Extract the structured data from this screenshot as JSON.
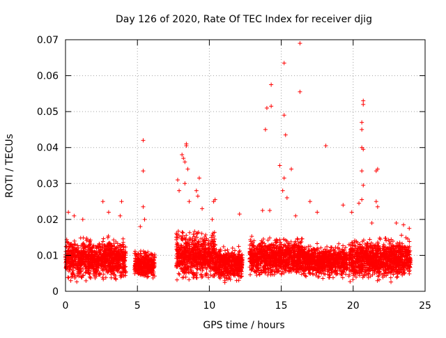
{
  "chart_data": {
    "type": "scatter",
    "title": "Day 126 of 2020, Rate Of TEC Index for receiver djig",
    "xlabel": "GPS time / hours",
    "ylabel": "ROTI / TECUs",
    "xlim": [
      0,
      25
    ],
    "ylim": [
      0,
      0.07
    ],
    "xticks": [
      0,
      5,
      10,
      15,
      20,
      25
    ],
    "yticks": [
      0,
      0.01,
      0.02,
      0.03,
      0.04,
      0.05,
      0.06,
      0.07
    ],
    "xtick_labels": [
      "0",
      "5",
      "10",
      "15",
      "20",
      "25"
    ],
    "ytick_labels": [
      "0",
      "0.01",
      "0.02",
      "0.03",
      "0.04",
      "0.05",
      "0.06",
      "0.07"
    ],
    "grid": true,
    "marker": "+",
    "color": "#ff0000",
    "series": [
      {
        "name": "ROTI",
        "dense_bands": [
          {
            "x_range": [
              0.0,
              4.2
            ],
            "y_range": [
              0.002,
              0.016
            ]
          },
          {
            "x_range": [
              4.8,
              6.2
            ],
            "y_range": [
              0.003,
              0.012
            ]
          },
          {
            "x_range": [
              7.7,
              10.4
            ],
            "y_range": [
              0.002,
              0.018
            ]
          },
          {
            "x_range": [
              10.4,
              12.3
            ],
            "y_range": [
              0.002,
              0.013
            ]
          },
          {
            "x_range": [
              12.8,
              16.5
            ],
            "y_range": [
              0.003,
              0.016
            ]
          },
          {
            "x_range": [
              16.5,
              19.6
            ],
            "y_range": [
              0.003,
              0.014
            ]
          },
          {
            "x_range": [
              19.7,
              24.0
            ],
            "y_range": [
              0.002,
              0.016
            ]
          }
        ],
        "points": [
          {
            "x": 0.2,
            "y": 0.022
          },
          {
            "x": 0.6,
            "y": 0.021
          },
          {
            "x": 1.2,
            "y": 0.02
          },
          {
            "x": 2.6,
            "y": 0.025
          },
          {
            "x": 3.0,
            "y": 0.022
          },
          {
            "x": 3.9,
            "y": 0.025
          },
          {
            "x": 3.8,
            "y": 0.021
          },
          {
            "x": 5.4,
            "y": 0.042
          },
          {
            "x": 5.4,
            "y": 0.0335
          },
          {
            "x": 5.4,
            "y": 0.0235
          },
          {
            "x": 5.5,
            "y": 0.02
          },
          {
            "x": 5.2,
            "y": 0.018
          },
          {
            "x": 7.8,
            "y": 0.031
          },
          {
            "x": 7.9,
            "y": 0.028
          },
          {
            "x": 8.1,
            "y": 0.038
          },
          {
            "x": 8.2,
            "y": 0.037
          },
          {
            "x": 8.3,
            "y": 0.036
          },
          {
            "x": 8.4,
            "y": 0.041
          },
          {
            "x": 8.4,
            "y": 0.0405
          },
          {
            "x": 8.5,
            "y": 0.034
          },
          {
            "x": 8.3,
            "y": 0.03
          },
          {
            "x": 8.6,
            "y": 0.025
          },
          {
            "x": 9.1,
            "y": 0.028
          },
          {
            "x": 9.3,
            "y": 0.0315
          },
          {
            "x": 9.2,
            "y": 0.0265
          },
          {
            "x": 9.5,
            "y": 0.023
          },
          {
            "x": 10.3,
            "y": 0.025
          },
          {
            "x": 10.4,
            "y": 0.0255
          },
          {
            "x": 10.2,
            "y": 0.02
          },
          {
            "x": 12.1,
            "y": 0.0215
          },
          {
            "x": 13.7,
            "y": 0.0225
          },
          {
            "x": 13.9,
            "y": 0.045
          },
          {
            "x": 14.0,
            "y": 0.051
          },
          {
            "x": 14.3,
            "y": 0.0515
          },
          {
            "x": 14.3,
            "y": 0.0575
          },
          {
            "x": 14.2,
            "y": 0.0225
          },
          {
            "x": 14.9,
            "y": 0.035
          },
          {
            "x": 15.2,
            "y": 0.0635
          },
          {
            "x": 15.2,
            "y": 0.049
          },
          {
            "x": 15.3,
            "y": 0.0435
          },
          {
            "x": 15.2,
            "y": 0.0315
          },
          {
            "x": 15.1,
            "y": 0.028
          },
          {
            "x": 15.7,
            "y": 0.034
          },
          {
            "x": 15.4,
            "y": 0.026
          },
          {
            "x": 16.3,
            "y": 0.069
          },
          {
            "x": 16.3,
            "y": 0.0555
          },
          {
            "x": 16.0,
            "y": 0.021
          },
          {
            "x": 17.0,
            "y": 0.025
          },
          {
            "x": 17.5,
            "y": 0.022
          },
          {
            "x": 18.1,
            "y": 0.0405
          },
          {
            "x": 19.3,
            "y": 0.024
          },
          {
            "x": 19.9,
            "y": 0.022
          },
          {
            "x": 20.4,
            "y": 0.0245
          },
          {
            "x": 20.7,
            "y": 0.053
          },
          {
            "x": 20.7,
            "y": 0.052
          },
          {
            "x": 20.6,
            "y": 0.047
          },
          {
            "x": 20.6,
            "y": 0.045
          },
          {
            "x": 20.6,
            "y": 0.04
          },
          {
            "x": 20.7,
            "y": 0.0395
          },
          {
            "x": 20.6,
            "y": 0.0335
          },
          {
            "x": 20.7,
            "y": 0.0295
          },
          {
            "x": 20.6,
            "y": 0.0255
          },
          {
            "x": 21.7,
            "y": 0.034
          },
          {
            "x": 21.6,
            "y": 0.0335
          },
          {
            "x": 21.6,
            "y": 0.025
          },
          {
            "x": 21.7,
            "y": 0.0235
          },
          {
            "x": 21.3,
            "y": 0.019
          },
          {
            "x": 23.0,
            "y": 0.019
          },
          {
            "x": 23.5,
            "y": 0.0185
          },
          {
            "x": 23.9,
            "y": 0.0175
          }
        ]
      }
    ]
  }
}
